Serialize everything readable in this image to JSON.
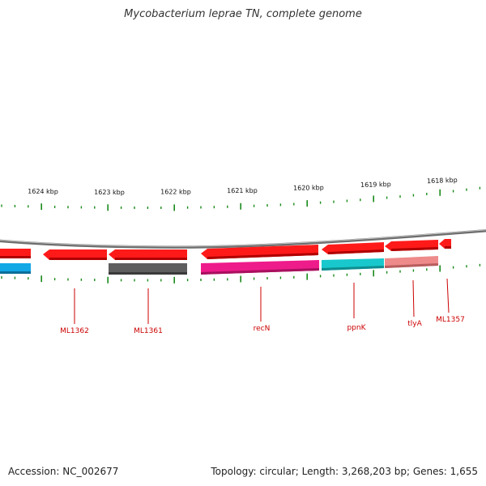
{
  "title": "Mycobacterium leprae TN, complete genome",
  "footer": {
    "accession": "Accession: NC_002677",
    "summary": "Topology: circular; Length: 3,268,203 bp; Genes: 1,655"
  },
  "colors": {
    "backbone": "#8a8a8a",
    "tick": "#1a8a1a",
    "label": "#cc0000",
    "cds_forward": "#ff1a1a",
    "cds_forward_dark": "#c40000",
    "track_cyan": "#18c8cc",
    "track_blue": "#12a8e6",
    "track_gray": "#5e5e5e",
    "track_magenta": "#ee1c8a",
    "track_pink": "#ee8a8a"
  },
  "ruler": {
    "labels": [
      "1624 kbp",
      "1623 kbp",
      "1622 kbp",
      "1621 kbp",
      "1620 kbp",
      "1619 kbp",
      "1618 kbp"
    ]
  },
  "genes": [
    {
      "name": "ML1362"
    },
    {
      "name": "ML1361"
    },
    {
      "name": "recN"
    },
    {
      "name": "ppnK"
    },
    {
      "name": "tlyA"
    },
    {
      "name": "ML1357"
    }
  ]
}
